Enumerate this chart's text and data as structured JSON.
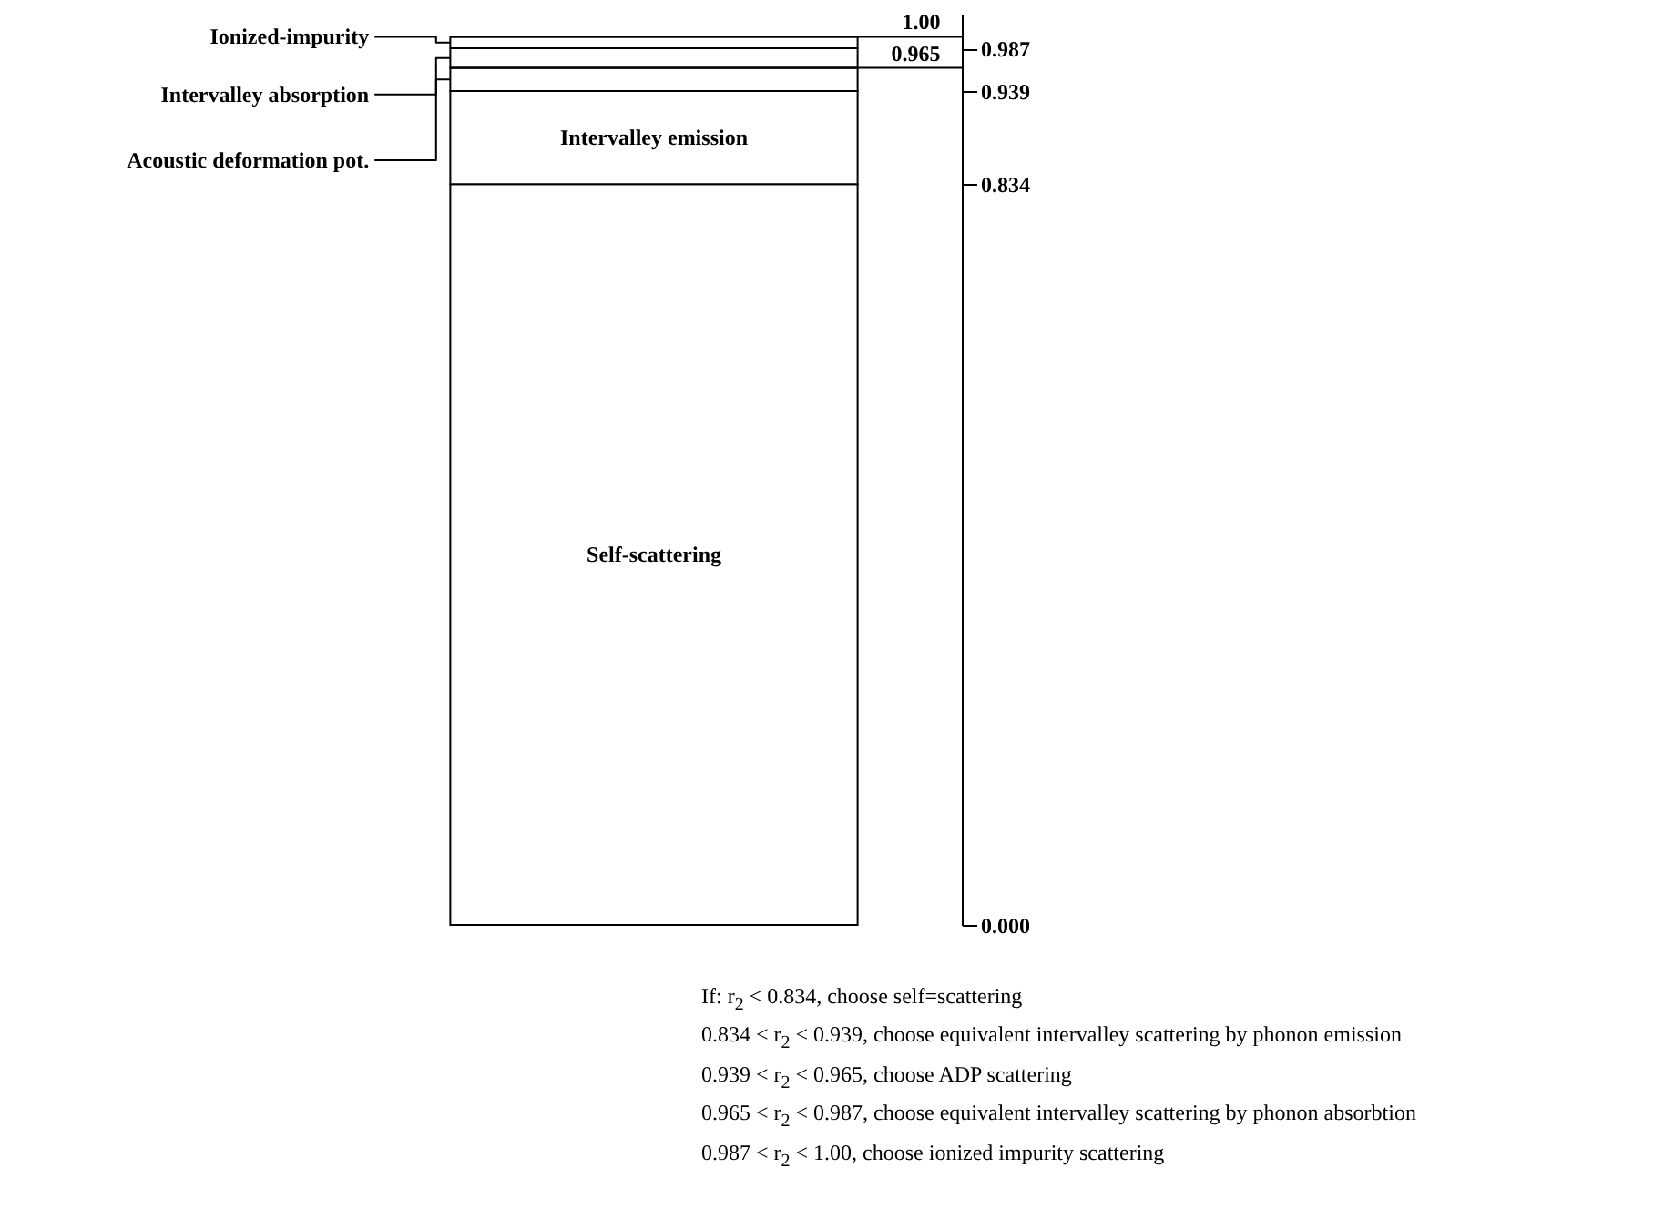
{
  "chart_data": {
    "type": "bar",
    "stacked": true,
    "relative": false,
    "categories": [
      null
    ],
    "series": [
      {
        "name": "Self-scattering",
        "color": "#ffffff",
        "values": [
          0.834
        ]
      },
      {
        "name": "Intervalley emission",
        "color": "#ffffff",
        "values": [
          0.105
        ]
      },
      {
        "name": "Acoustic deformation pot.",
        "color": "#ffffff",
        "values": [
          0.026
        ]
      },
      {
        "name": "Intervalley absorption",
        "color": "#ffffff",
        "values": [
          0.022
        ]
      },
      {
        "name": "Ionized-impurity",
        "color": "#ffffff",
        "values": [
          0.013
        ]
      }
    ],
    "ylim": [
      0,
      1.025
    ],
    "yticks": [
      {
        "value": 0,
        "label": "0.000"
      },
      {
        "value": 0.834,
        "label": "0.834"
      },
      {
        "value": 0.939,
        "label": "0.939"
      },
      {
        "value": 0.987,
        "label": "0.987"
      }
    ],
    "ref_lines": [
      {
        "axis": "y",
        "value": 1.0,
        "label": "1.00"
      },
      {
        "axis": "y",
        "value": 0.965,
        "label": "0.965"
      }
    ],
    "grid": false,
    "legend": "left",
    "annotations": [
      "If: r$_{2}$ < 0.834, choose self=scattering",
      "0.834 < r$_{2}$ < 0.939, choose equivalent intervalley scattering by phonon emission",
      "0.939 < r$_{2}$ < 0.965, choose ADP scattering",
      "0.965 < r$_{2}$ < 0.987, choose equivalent intervalley scattering by phonon absorbtion",
      "0.987 < r$_{2}$ < 1.00, choose ionized impurity scattering"
    ]
  }
}
